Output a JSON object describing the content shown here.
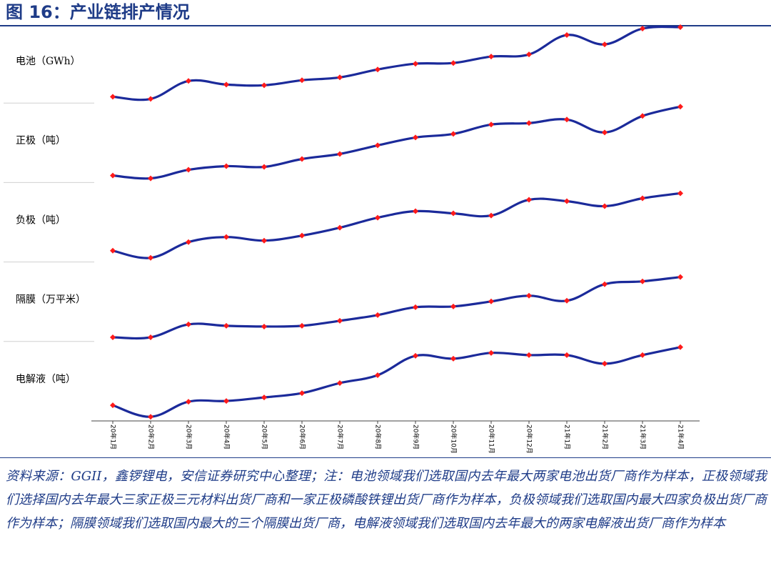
{
  "title": "图 16：产业链排产情况",
  "source_note": "资料来源：GGII，鑫锣锂电，安信证券研究中心整理；注：电池领域我们选取国内去年最大两家电池出货厂商作为样本，正极领域我们选择国内去年最大三家正极三元材料出货厂商和一家正极磷酸铁锂出货厂商作为样本，负极领域我们选取国内最大四家负极出货厂商作为样本；隔膜领域我们选取国内最大的三个隔膜出货厂商，电解液领域我们选取国内去年最大的两家电解液出货厂商作为样本",
  "colors": {
    "line": "#1b2a9a",
    "marker": "#ff1a1a",
    "accent": "#1f3c88",
    "separator": "#d0d0d0"
  },
  "chart_data": {
    "type": "line",
    "categories": [
      "20年1月",
      "20年2月",
      "20年3月",
      "20年4月",
      "20年5月",
      "20年6月",
      "20年7月",
      "20年8月",
      "20年9月",
      "20年10月",
      "20年11月",
      "20年12月",
      "21年1月",
      "21年2月",
      "21年3月",
      "21年4月"
    ],
    "yaxis_visible": false,
    "series": [
      {
        "name": "电池（GWh）",
        "values": [
          0.03,
          0.0,
          0.25,
          0.2,
          0.19,
          0.26,
          0.3,
          0.41,
          0.49,
          0.5,
          0.59,
          0.62,
          0.89,
          0.76,
          0.98,
          1.0
        ]
      },
      {
        "name": "正极（吨）",
        "values": [
          0.04,
          0.0,
          0.12,
          0.17,
          0.16,
          0.27,
          0.34,
          0.46,
          0.57,
          0.62,
          0.75,
          0.77,
          0.82,
          0.64,
          0.87,
          1.0
        ]
      },
      {
        "name": "负极（吨）",
        "values": [
          0.1,
          0.0,
          0.22,
          0.29,
          0.24,
          0.31,
          0.42,
          0.56,
          0.65,
          0.62,
          0.59,
          0.81,
          0.79,
          0.72,
          0.83,
          0.9
        ]
      },
      {
        "name": "隔膜（万平米）",
        "values": [
          0.0,
          0.0,
          0.18,
          0.16,
          0.15,
          0.16,
          0.23,
          0.31,
          0.42,
          0.43,
          0.5,
          0.58,
          0.51,
          0.74,
          0.78,
          0.84
        ]
      },
      {
        "name": "电解液（吨）",
        "values": [
          0.16,
          0.0,
          0.21,
          0.22,
          0.27,
          0.33,
          0.47,
          0.58,
          0.85,
          0.81,
          0.89,
          0.86,
          0.86,
          0.74,
          0.86,
          0.97
        ]
      }
    ]
  }
}
